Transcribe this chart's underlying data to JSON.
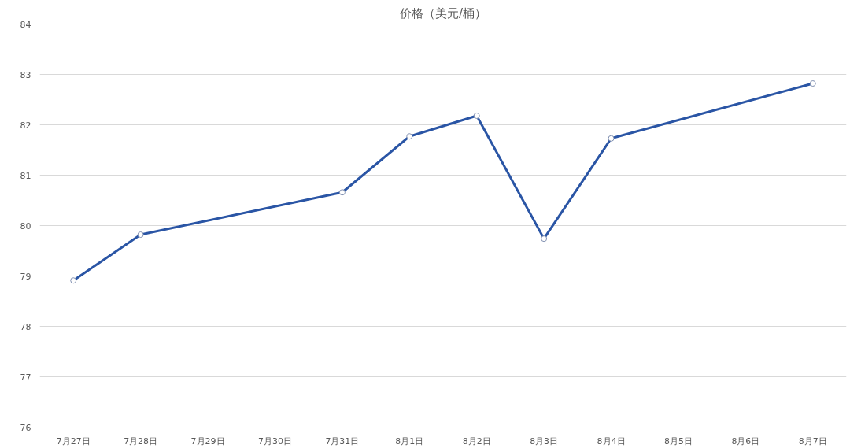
{
  "chart_data": {
    "type": "line",
    "title": "价格（美元/桶）",
    "categories": [
      "7月27日",
      "7月28日",
      "7月29日",
      "7月30日",
      "7月31日",
      "8月1日",
      "8月2日",
      "8月3日",
      "8月4日",
      "8月5日",
      "8月6日",
      "8月7日"
    ],
    "series": [
      {
        "color": "#2a55a5",
        "values": [
          78.91,
          79.82,
          null,
          null,
          80.66,
          81.77,
          82.18,
          79.74,
          81.73,
          null,
          null,
          82.82
        ]
      }
    ],
    "ylim": [
      76,
      84
    ],
    "yticks": [
      76,
      77,
      78,
      79,
      80,
      81,
      82,
      83,
      84
    ],
    "grid": "y",
    "marker": "circle",
    "line_style": "solid"
  }
}
